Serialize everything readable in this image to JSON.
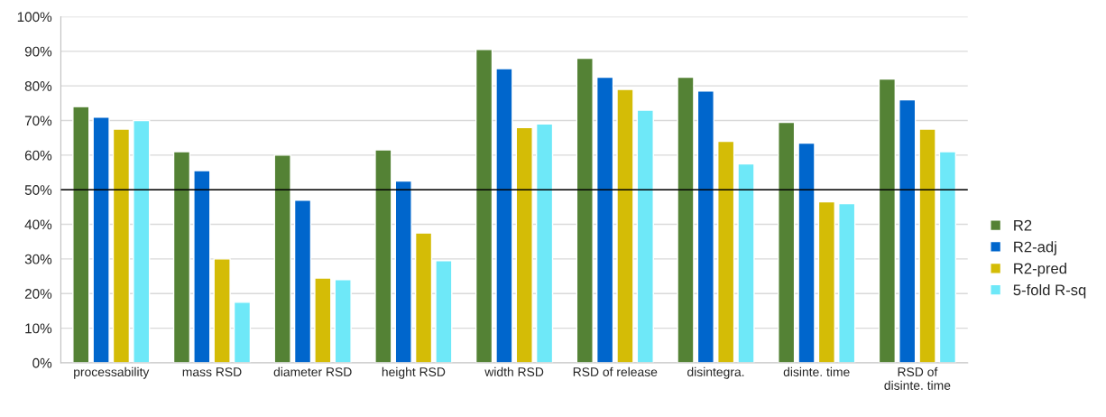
{
  "chart_data": {
    "type": "bar",
    "categories": [
      "processability",
      "mass RSD",
      "diameter RSD",
      "height RSD",
      "width RSD",
      "RSD of release",
      "disintegra.",
      "disinte. time",
      "RSD of\ndisinte. time"
    ],
    "series": [
      {
        "name": "R2",
        "color": "#548235",
        "values": [
          74,
          61,
          60,
          61.5,
          90.5,
          88,
          82.5,
          69.5,
          82
        ]
      },
      {
        "name": "R2-adj",
        "color": "#0066cc",
        "values": [
          71,
          55.5,
          47,
          52.5,
          85,
          82.5,
          78.5,
          63.5,
          76
        ]
      },
      {
        "name": "R2-pred",
        "color": "#d4bc06",
        "values": [
          67.5,
          30,
          24.5,
          37.5,
          68,
          79,
          64,
          46.5,
          67.5
        ]
      },
      {
        "name": "5-fold R-sq",
        "color": "#6ee8f8",
        "values": [
          70,
          17.5,
          24,
          29.5,
          69,
          73,
          57.5,
          46,
          61
        ]
      }
    ],
    "ylim": [
      0,
      100
    ],
    "yticks": [
      {
        "value": 0,
        "label": "0%"
      },
      {
        "value": 10,
        "label": "10%"
      },
      {
        "value": 20,
        "label": "20%"
      },
      {
        "value": 30,
        "label": "30%"
      },
      {
        "value": 40,
        "label": "40%"
      },
      {
        "value": 50,
        "label": "50%"
      },
      {
        "value": 60,
        "label": "60%"
      },
      {
        "value": 70,
        "label": "70%"
      },
      {
        "value": 80,
        "label": "80%"
      },
      {
        "value": 90,
        "label": "90%"
      },
      {
        "value": 100,
        "label": "100%"
      }
    ],
    "ref_lines": [
      {
        "axis": "y",
        "value": 50,
        "label": null,
        "color": "#000000"
      }
    ],
    "grid": "y",
    "legend": "right"
  }
}
